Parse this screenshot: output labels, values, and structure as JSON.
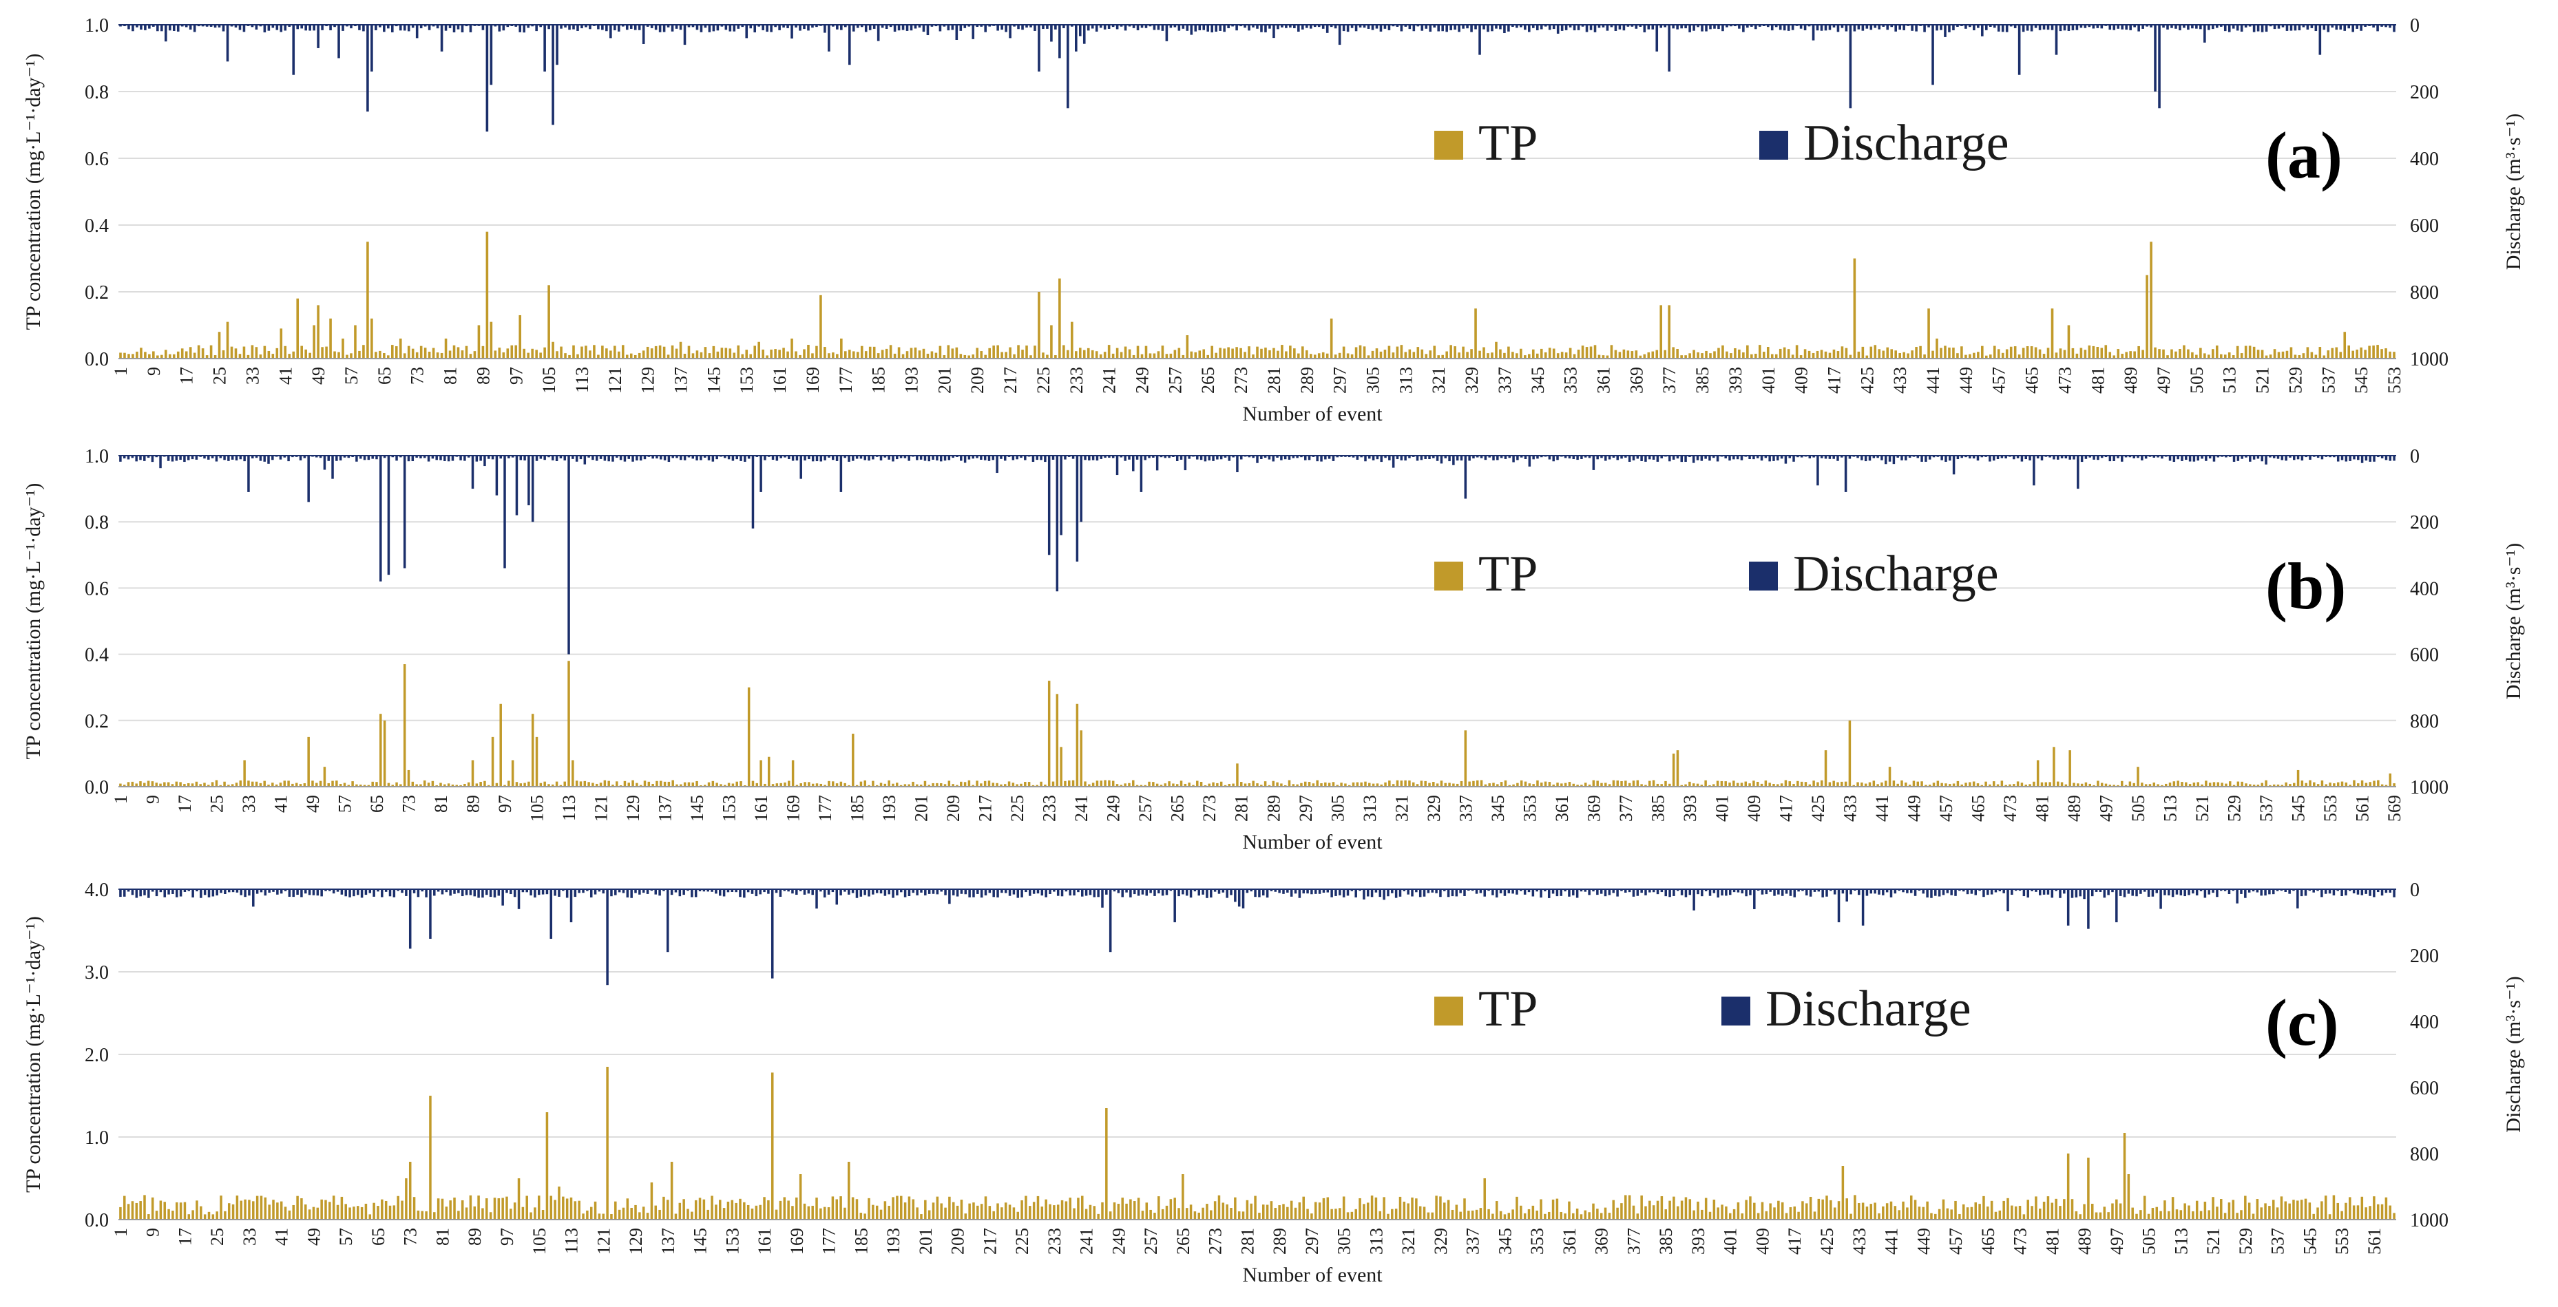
{
  "colors": {
    "tp": "#C19A2A",
    "discharge": "#1B2F6B"
  },
  "chart_data": [
    {
      "type": "bar",
      "panel": "(a)",
      "events": 553,
      "xlabel": "Number of event",
      "ylabel_left": "TP concentration (mg·L⁻¹·day⁻¹)",
      "ylabel_right": "Discharge (m³·s⁻¹)",
      "ylim_left": [
        0,
        1.0
      ],
      "yticks_left": [
        "0.0",
        "0.2",
        "0.4",
        "0.6",
        "0.8",
        "1.0"
      ],
      "ylim_right_inverted": [
        0,
        1000
      ],
      "yticks_right": [
        "0",
        "200",
        "400",
        "600",
        "800",
        "1000"
      ],
      "legend": [
        "TP",
        "Discharge"
      ],
      "xtick_step": 8,
      "tp_baseline": 0.025,
      "q_baseline": 12,
      "tp_peaks": [
        [
          20,
          0.04
        ],
        [
          25,
          0.08
        ],
        [
          27,
          0.11
        ],
        [
          40,
          0.09
        ],
        [
          44,
          0.18
        ],
        [
          48,
          0.1
        ],
        [
          49,
          0.16
        ],
        [
          52,
          0.12
        ],
        [
          55,
          0.06
        ],
        [
          58,
          0.1
        ],
        [
          61,
          0.35
        ],
        [
          62,
          0.12
        ],
        [
          69,
          0.06
        ],
        [
          80,
          0.06
        ],
        [
          88,
          0.1
        ],
        [
          90,
          0.38
        ],
        [
          91,
          0.11
        ],
        [
          98,
          0.13
        ],
        [
          105,
          0.22
        ],
        [
          106,
          0.05
        ],
        [
          137,
          0.05
        ],
        [
          156,
          0.05
        ],
        [
          164,
          0.06
        ],
        [
          171,
          0.19
        ],
        [
          176,
          0.06
        ],
        [
          224,
          0.2
        ],
        [
          227,
          0.1
        ],
        [
          229,
          0.24
        ],
        [
          232,
          0.11
        ],
        [
          260,
          0.07
        ],
        [
          295,
          0.12
        ],
        [
          330,
          0.15
        ],
        [
          335,
          0.05
        ],
        [
          375,
          0.16
        ],
        [
          377,
          0.16
        ],
        [
          422,
          0.3
        ],
        [
          440,
          0.15
        ],
        [
          442,
          0.06
        ],
        [
          470,
          0.15
        ],
        [
          474,
          0.1
        ],
        [
          493,
          0.25
        ],
        [
          494,
          0.35
        ],
        [
          541,
          0.08
        ]
      ],
      "q_peaks": [
        [
          12,
          50
        ],
        [
          27,
          110
        ],
        [
          43,
          150
        ],
        [
          49,
          70
        ],
        [
          54,
          100
        ],
        [
          61,
          260
        ],
        [
          62,
          140
        ],
        [
          73,
          40
        ],
        [
          79,
          80
        ],
        [
          90,
          320
        ],
        [
          91,
          180
        ],
        [
          104,
          140
        ],
        [
          106,
          300
        ],
        [
          107,
          120
        ],
        [
          120,
          40
        ],
        [
          138,
          60
        ],
        [
          153,
          40
        ],
        [
          173,
          80
        ],
        [
          178,
          120
        ],
        [
          217,
          40
        ],
        [
          224,
          140
        ],
        [
          229,
          100
        ],
        [
          231,
          250
        ],
        [
          233,
          80
        ],
        [
          261,
          30
        ],
        [
          297,
          60
        ],
        [
          331,
          90
        ],
        [
          374,
          80
        ],
        [
          377,
          140
        ],
        [
          421,
          250
        ],
        [
          441,
          180
        ],
        [
          462,
          150
        ],
        [
          471,
          90
        ],
        [
          495,
          200
        ],
        [
          496,
          250
        ],
        [
          535,
          90
        ]
      ]
    },
    {
      "type": "bar",
      "panel": "(b)",
      "events": 569,
      "xlabel": "Number of event",
      "ylabel_left": "TP concentration (mg·L⁻¹·day⁻¹)",
      "ylabel_right": "Discharge (m³·s⁻¹)",
      "ylim_left": [
        0,
        1.0
      ],
      "yticks_left": [
        "0.0",
        "0.2",
        "0.4",
        "0.6",
        "0.8",
        "1.0"
      ],
      "ylim_right_inverted": [
        0,
        1000
      ],
      "yticks_right": [
        "0",
        "200",
        "400",
        "600",
        "800",
        "1000"
      ],
      "legend": [
        "TP",
        "Discharge"
      ],
      "xtick_step": 8,
      "tp_baseline": 0.012,
      "q_baseline": 10,
      "tp_peaks": [
        [
          32,
          0.08
        ],
        [
          48,
          0.15
        ],
        [
          52,
          0.06
        ],
        [
          66,
          0.22
        ],
        [
          67,
          0.2
        ],
        [
          72,
          0.37
        ],
        [
          73,
          0.05
        ],
        [
          89,
          0.08
        ],
        [
          94,
          0.15
        ],
        [
          96,
          0.25
        ],
        [
          99,
          0.08
        ],
        [
          104,
          0.22
        ],
        [
          105,
          0.15
        ],
        [
          113,
          0.38
        ],
        [
          114,
          0.08
        ],
        [
          158,
          0.3
        ],
        [
          161,
          0.08
        ],
        [
          163,
          0.09
        ],
        [
          169,
          0.08
        ],
        [
          184,
          0.16
        ],
        [
          233,
          0.32
        ],
        [
          235,
          0.28
        ],
        [
          236,
          0.12
        ],
        [
          240,
          0.25
        ],
        [
          241,
          0.17
        ],
        [
          280,
          0.07
        ],
        [
          337,
          0.17
        ],
        [
          389,
          0.1
        ],
        [
          390,
          0.11
        ],
        [
          427,
          0.11
        ],
        [
          433,
          0.2
        ],
        [
          443,
          0.06
        ],
        [
          480,
          0.08
        ],
        [
          484,
          0.12
        ],
        [
          488,
          0.11
        ],
        [
          505,
          0.06
        ],
        [
          545,
          0.05
        ],
        [
          568,
          0.04
        ]
      ],
      "q_peaks": [
        [
          33,
          110
        ],
        [
          48,
          140
        ],
        [
          54,
          70
        ],
        [
          66,
          380
        ],
        [
          68,
          360
        ],
        [
          72,
          340
        ],
        [
          89,
          100
        ],
        [
          95,
          120
        ],
        [
          97,
          340
        ],
        [
          100,
          180
        ],
        [
          103,
          150
        ],
        [
          104,
          200
        ],
        [
          113,
          600
        ],
        [
          159,
          220
        ],
        [
          161,
          110
        ],
        [
          171,
          70
        ],
        [
          181,
          110
        ],
        [
          233,
          300
        ],
        [
          235,
          410
        ],
        [
          236,
          240
        ],
        [
          240,
          320
        ],
        [
          241,
          200
        ],
        [
          256,
          110
        ],
        [
          280,
          50
        ],
        [
          337,
          130
        ],
        [
          425,
          90
        ],
        [
          432,
          110
        ],
        [
          479,
          90
        ],
        [
          490,
          100
        ]
      ]
    },
    {
      "type": "bar",
      "panel": "(c)",
      "events": 566,
      "xlabel": "Number of event",
      "ylabel_left": "TP concentration (mg·L⁻¹·day⁻¹)",
      "ylabel_right": "Discharge (m³·s⁻¹)",
      "ylim_left": [
        0,
        4.0
      ],
      "yticks_left": [
        "0.0",
        "1.0",
        "2.0",
        "3.0",
        "4.0"
      ],
      "ylim_right_inverted": [
        0,
        1000
      ],
      "yticks_right": [
        "0",
        "200",
        "400",
        "600",
        "800",
        "1000"
      ],
      "legend": [
        "TP",
        "Discharge"
      ],
      "xtick_step": 8,
      "tp_baseline": 0.18,
      "q_baseline": 14,
      "tp_peaks": [
        [
          72,
          0.5
        ],
        [
          73,
          0.7
        ],
        [
          78,
          1.5
        ],
        [
          100,
          0.5
        ],
        [
          107,
          1.3
        ],
        [
          110,
          0.4
        ],
        [
          122,
          1.85
        ],
        [
          133,
          0.45
        ],
        [
          138,
          0.7
        ],
        [
          163,
          1.78
        ],
        [
          170,
          0.55
        ],
        [
          182,
          0.7
        ],
        [
          246,
          1.35
        ],
        [
          265,
          0.55
        ],
        [
          340,
          0.5
        ],
        [
          429,
          0.65
        ],
        [
          485,
          0.8
        ],
        [
          490,
          0.75
        ],
        [
          499,
          1.05
        ],
        [
          500,
          0.55
        ]
      ],
      "q_peaks": [
        [
          73,
          180
        ],
        [
          78,
          150
        ],
        [
          100,
          60
        ],
        [
          108,
          150
        ],
        [
          113,
          100
        ],
        [
          122,
          290
        ],
        [
          137,
          190
        ],
        [
          163,
          270
        ],
        [
          247,
          190
        ],
        [
          263,
          100
        ],
        [
          428,
          100
        ],
        [
          434,
          110
        ],
        [
          485,
          110
        ],
        [
          490,
          120
        ],
        [
          497,
          100
        ]
      ]
    }
  ]
}
